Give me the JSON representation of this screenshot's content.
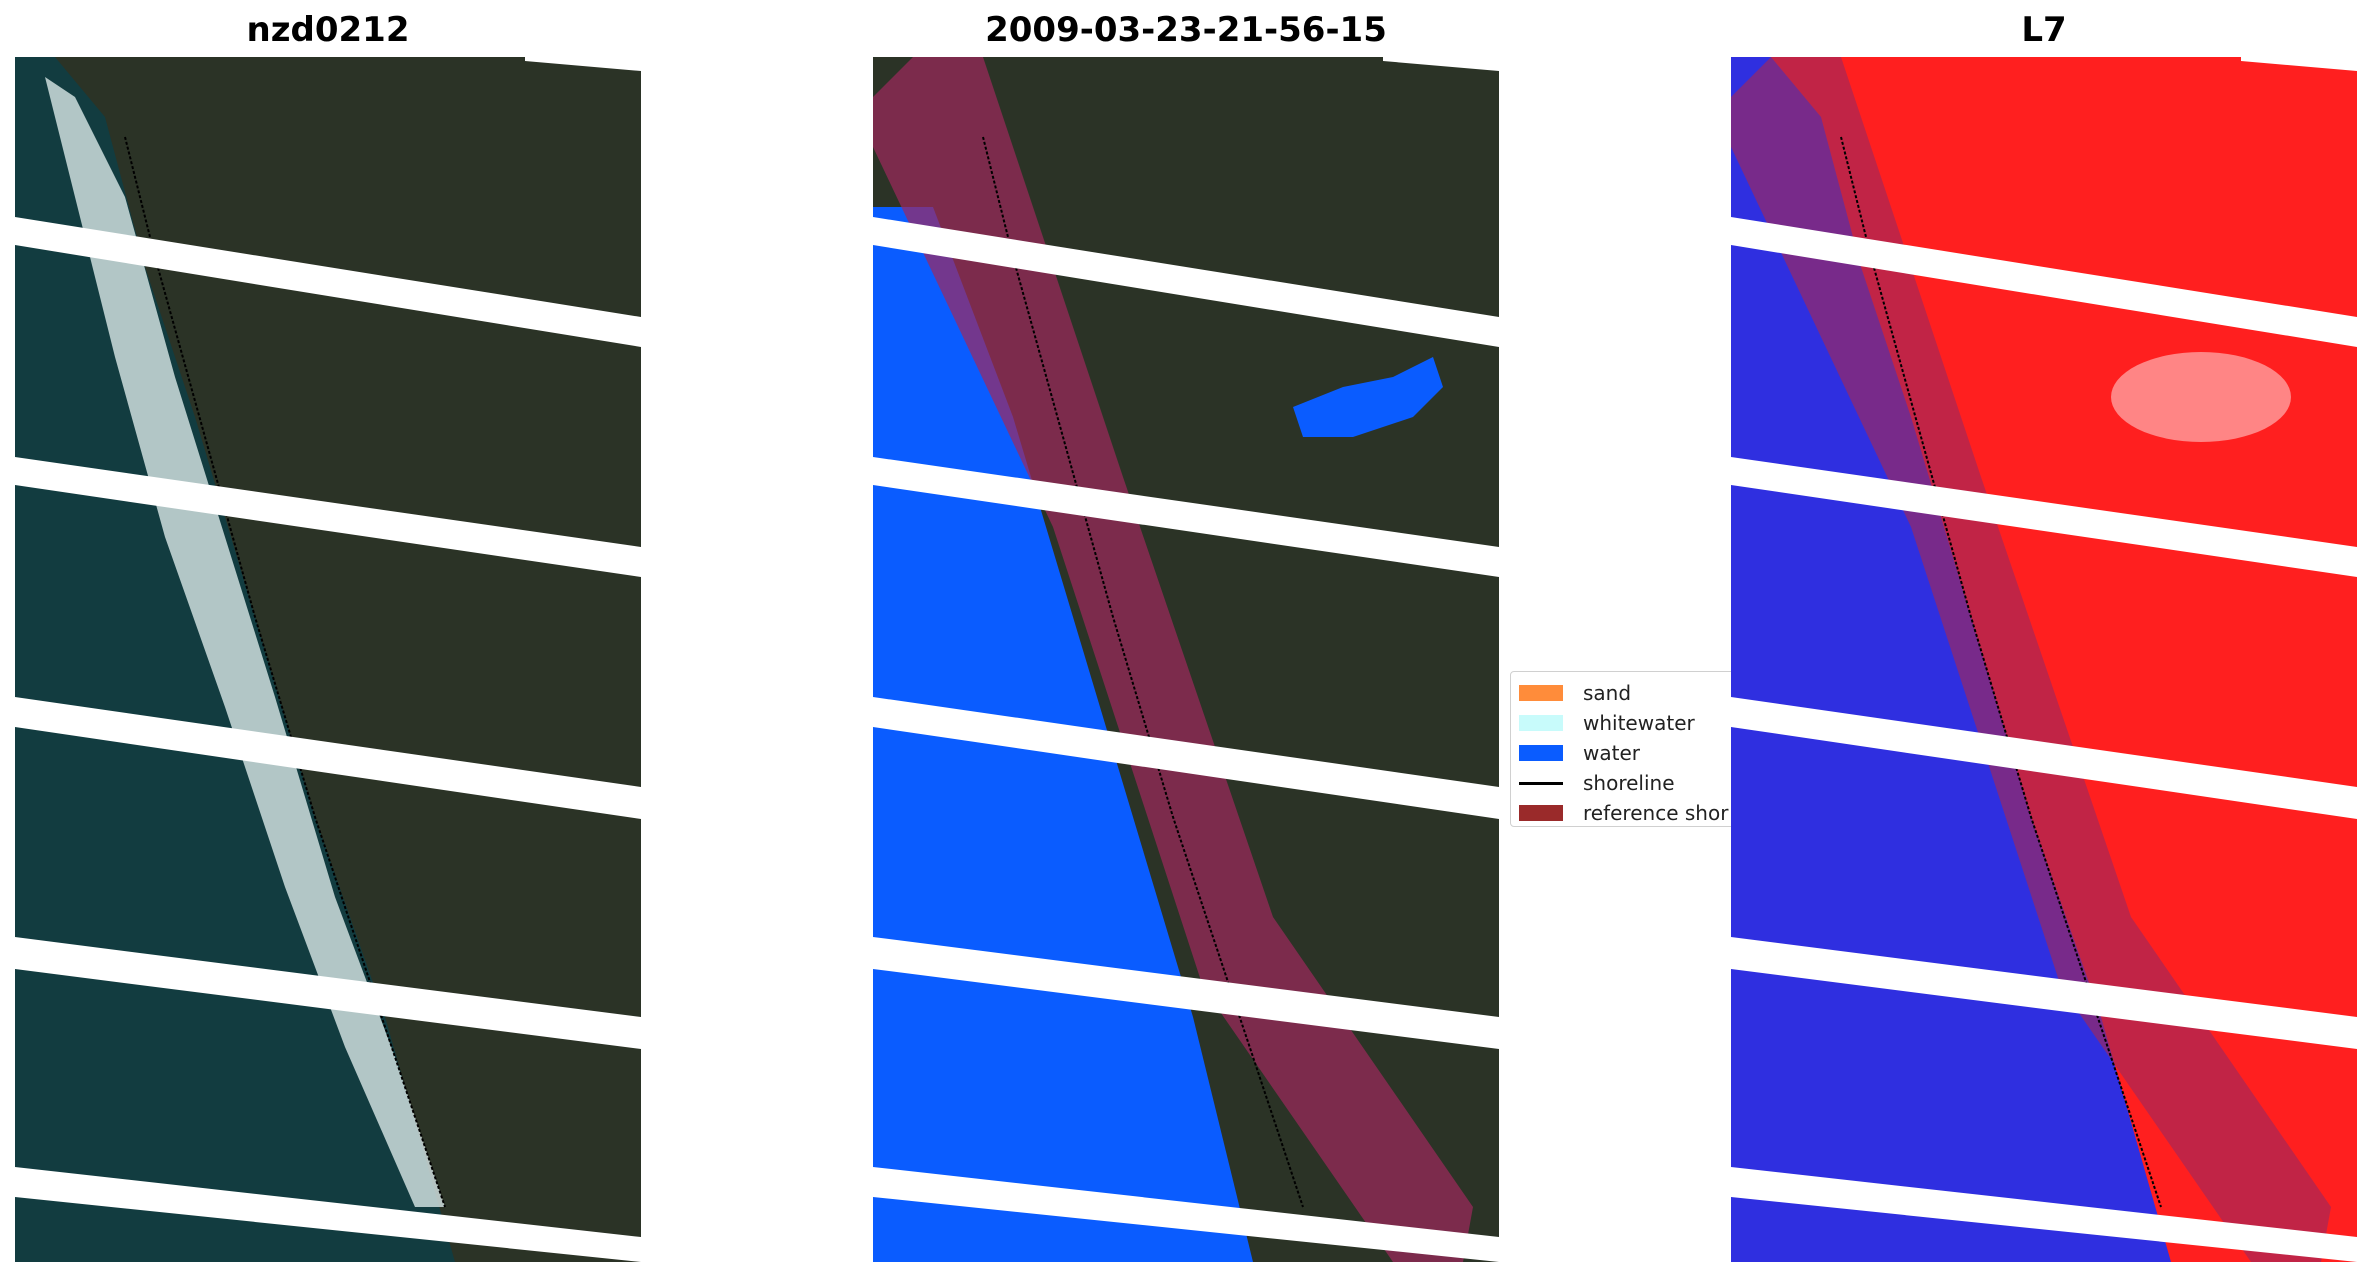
{
  "panels": [
    {
      "title": "nzd0212"
    },
    {
      "title": "2009-03-23-21-56-15"
    },
    {
      "title": "L7"
    }
  ],
  "legend": {
    "items": [
      {
        "label": "sand",
        "color": "#ff8c3a",
        "kind": "patch"
      },
      {
        "label": "whitewater",
        "color": "#c8fbfb",
        "kind": "patch"
      },
      {
        "label": "water",
        "color": "#0a5cff",
        "kind": "patch"
      },
      {
        "label": "shoreline",
        "color": "#000000",
        "kind": "line"
      },
      {
        "label": "reference shor",
        "color": "#9a2a2a",
        "kind": "patch"
      }
    ]
  },
  "colors": {
    "land_dark": "#283024",
    "land_mid": "#3a3f2e",
    "ocean": "#0f3a3e",
    "surf": "#d8e6e6",
    "water_class": "#0a5cff",
    "buffer": "#b0306a",
    "index_red": "#ff1a1a",
    "index_blue": "#2a2ae6"
  }
}
